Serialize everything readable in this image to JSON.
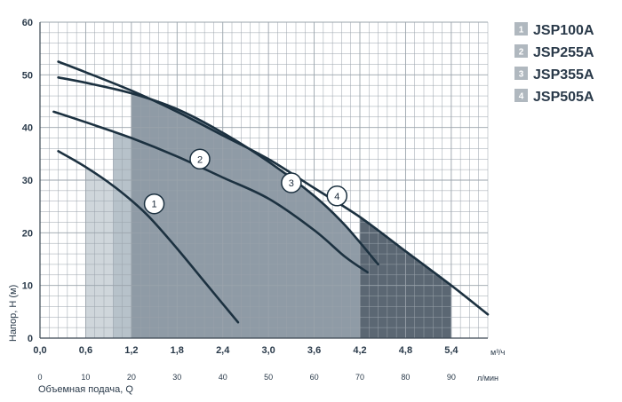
{
  "chart_data": {
    "type": "line",
    "title": "",
    "xlabel": "Объемная подача, Q",
    "ylabel": "Напор, H (м)",
    "x_unit_primary": "м³/ч",
    "x_unit_secondary": "л/мин",
    "xlim": [
      0,
      5.88
    ],
    "ylim": [
      0,
      60
    ],
    "grid": true,
    "y_ticks": [
      "0",
      "10",
      "20",
      "30",
      "40",
      "50",
      "60"
    ],
    "x_ticks_primary": [
      {
        "v": 0.0,
        "label": "0,0"
      },
      {
        "v": 0.6,
        "label": "0,6"
      },
      {
        "v": 1.2,
        "label": "1,2"
      },
      {
        "v": 1.8,
        "label": "1,8"
      },
      {
        "v": 2.4,
        "label": "2,4"
      },
      {
        "v": 3.0,
        "label": "3,0"
      },
      {
        "v": 3.6,
        "label": "3,6"
      },
      {
        "v": 4.2,
        "label": "4,2"
      },
      {
        "v": 4.8,
        "label": "4,8"
      },
      {
        "v": 5.4,
        "label": "5,4"
      }
    ],
    "x_ticks_secondary": [
      {
        "v": 0,
        "label": "0"
      },
      {
        "v": 10,
        "label": "10"
      },
      {
        "v": 20,
        "label": "20"
      },
      {
        "v": 30,
        "label": "30"
      },
      {
        "v": 40,
        "label": "40"
      },
      {
        "v": 50,
        "label": "50"
      },
      {
        "v": 60,
        "label": "60"
      },
      {
        "v": 70,
        "label": "70"
      },
      {
        "v": 80,
        "label": "80"
      },
      {
        "v": 90,
        "label": "90"
      }
    ],
    "legend_position": "top-right",
    "series": [
      {
        "name": "JSP100A",
        "number": "1",
        "x": [
          0.24,
          0.6,
          1.0,
          1.4,
          1.8,
          2.2,
          2.6
        ],
        "y": [
          35.5,
          32.5,
          28.5,
          23.5,
          17.0,
          10.0,
          3.0
        ],
        "region_x": [
          0.6,
          2.4
        ],
        "label_point": [
          1.5,
          25.5
        ]
      },
      {
        "name": "JSP255A",
        "number": "2",
        "x": [
          0.18,
          0.6,
          1.2,
          1.8,
          2.4,
          3.0,
          3.6,
          4.0,
          4.3
        ],
        "y": [
          43.0,
          41.0,
          38.0,
          34.5,
          30.5,
          26.5,
          20.5,
          15.5,
          12.5
        ],
        "region_x": [
          0.96,
          4.08
        ],
        "label_point": [
          2.1,
          34.0
        ]
      },
      {
        "name": "JSP355A",
        "number": "3",
        "x": [
          0.24,
          0.6,
          1.2,
          1.8,
          2.4,
          3.0,
          3.6,
          4.0,
          4.44
        ],
        "y": [
          49.5,
          48.5,
          46.5,
          43.5,
          39.0,
          33.5,
          27.0,
          21.5,
          14.0
        ],
        "region_x": [
          1.2,
          4.2
        ],
        "label_point": [
          3.3,
          29.5
        ]
      },
      {
        "name": "JSP505A",
        "number": "4",
        "x": [
          0.24,
          0.6,
          1.2,
          1.8,
          2.4,
          3.0,
          3.6,
          4.2,
          4.8,
          5.4,
          5.88
        ],
        "y": [
          52.5,
          50.5,
          47.0,
          43.0,
          38.5,
          34.0,
          28.5,
          23.0,
          16.5,
          10.0,
          4.5
        ],
        "region_x": [
          4.2,
          5.4
        ],
        "label_point": [
          3.9,
          27.0
        ]
      }
    ],
    "colors": {
      "region_light": "#cfd6db",
      "region_mid": "#b7c2ca",
      "region_upper": "#8f9ba6",
      "region_dark": "#5b6773",
      "curve": "#1c3140",
      "grid": "#9aa3ab",
      "legend_box": "#b0b8bf"
    }
  }
}
